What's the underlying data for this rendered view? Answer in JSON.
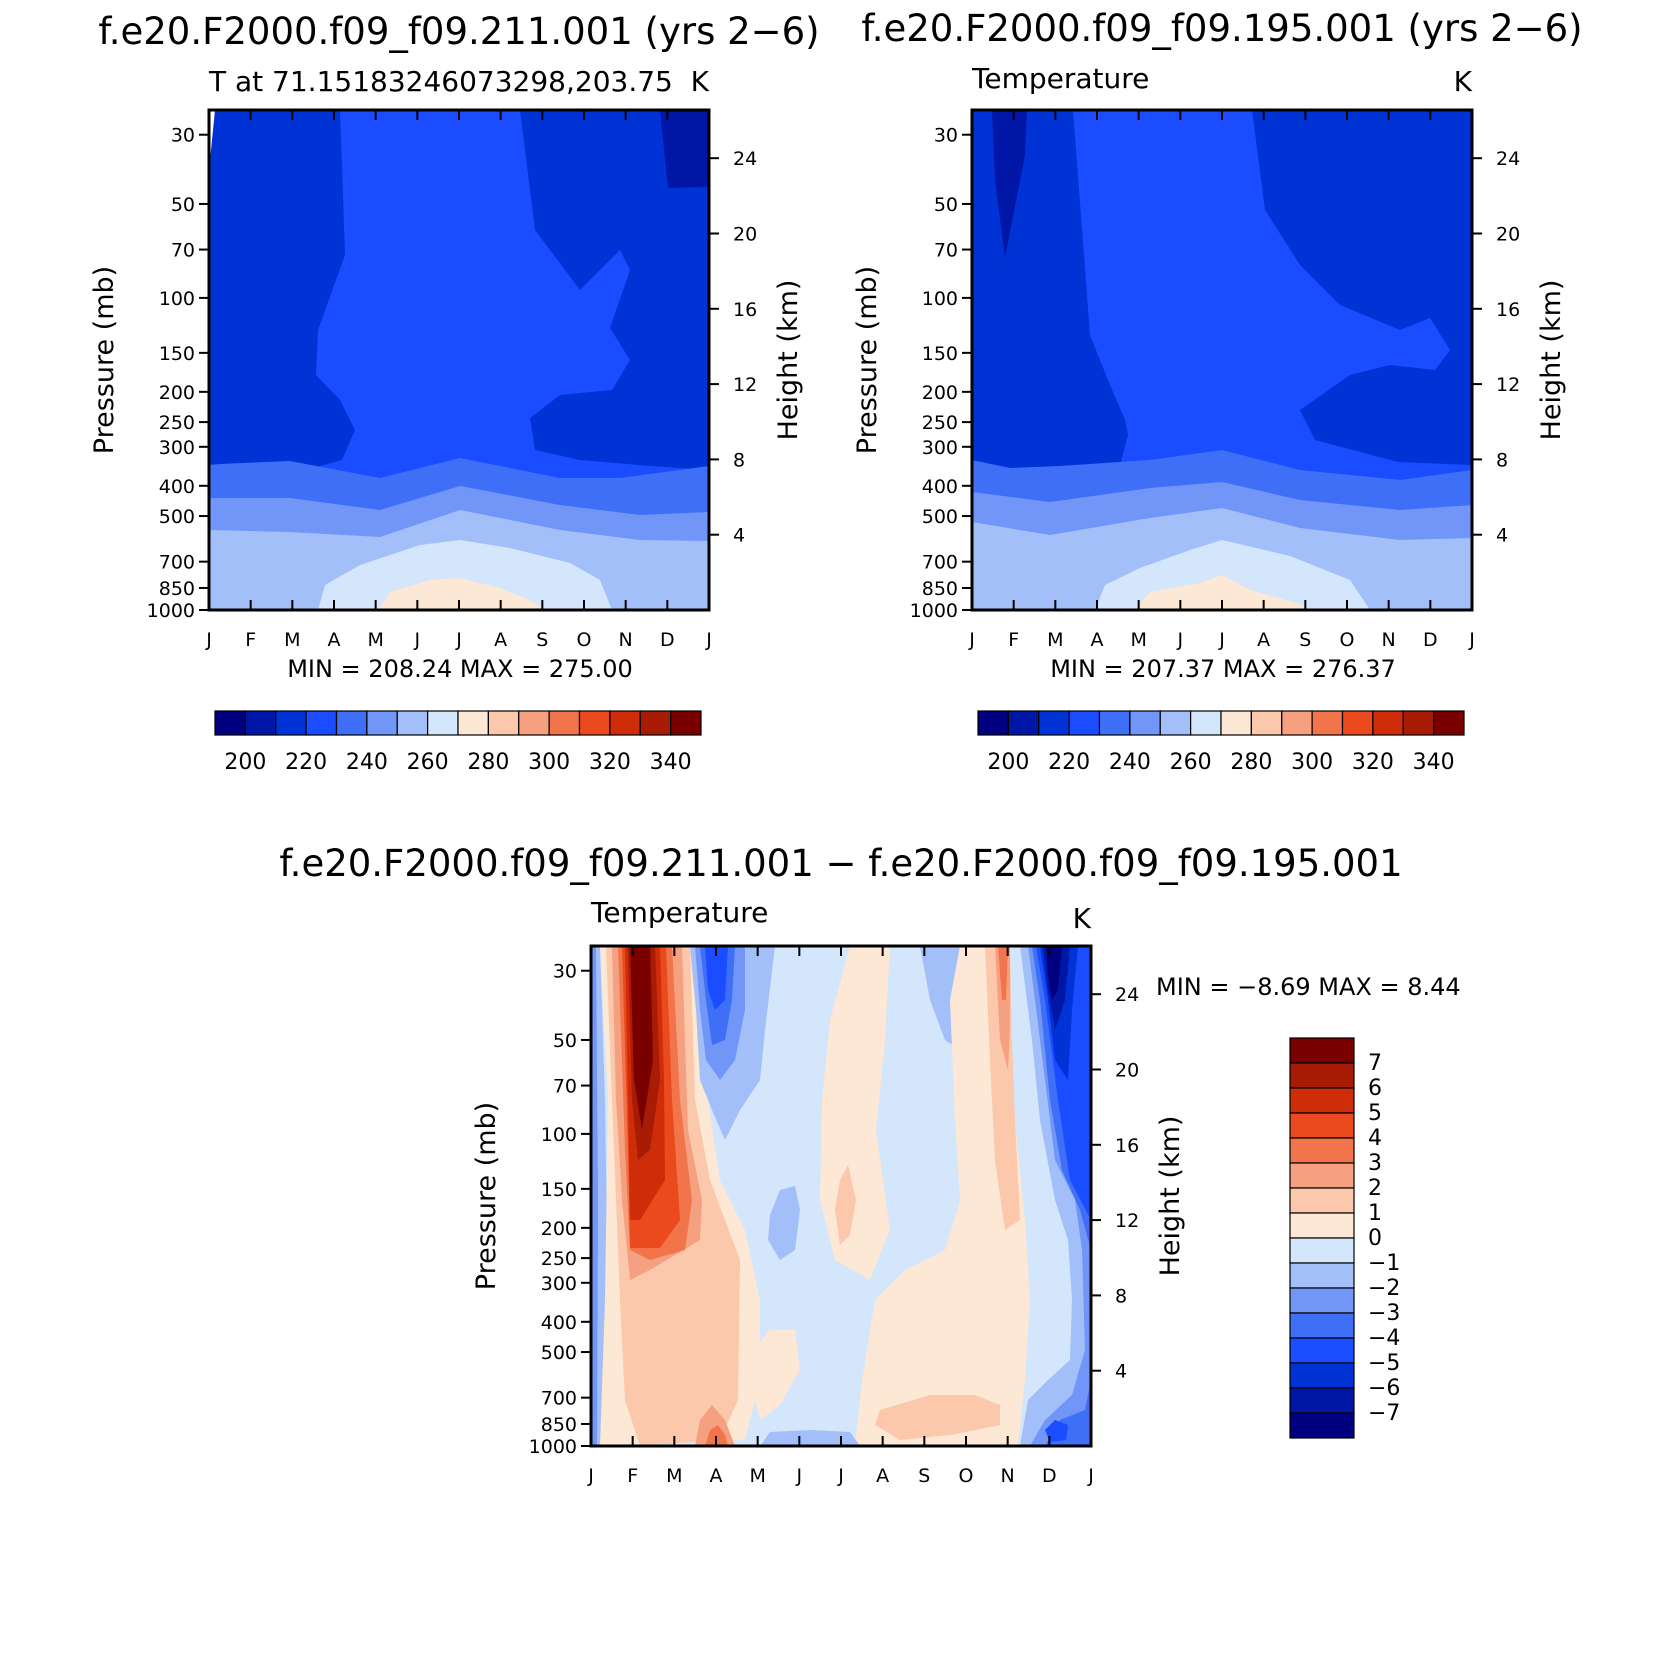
{
  "chart_data": [
    {
      "type": "heatmap",
      "title": "f.e20.F2000.f09_f09.211.001 (yrs 2−6)",
      "left_label": "T at 71.15183246073298,203.75",
      "right_label": "K",
      "xlabel": "",
      "ylabel": "Pressure (mb)",
      "y2label": "Height (km)",
      "months": [
        "J",
        "F",
        "M",
        "A",
        "M",
        "J",
        "J",
        "A",
        "S",
        "O",
        "N",
        "D",
        "J"
      ],
      "pressure_ticks": [
        30,
        50,
        70,
        100,
        150,
        200,
        250,
        300,
        400,
        500,
        700,
        850,
        1000
      ],
      "height_ticks": [
        24,
        20,
        16,
        12,
        8,
        4
      ],
      "ylim": [
        1000,
        25
      ],
      "stats_text": "MIN = 208.24 MAX = 275.00",
      "min": 208.24,
      "max": 275.0,
      "levels": [
        200,
        210,
        220,
        230,
        240,
        250,
        260,
        270,
        280,
        290,
        300,
        310,
        320,
        330,
        340
      ],
      "colorbar_labels": [
        "200",
        "220",
        "240",
        "260",
        "280",
        "300",
        "320",
        "340"
      ],
      "colors": [
        "#000080",
        "#0016a6",
        "#0033d6",
        "#1a4dff",
        "#3f6ff6",
        "#7196f7",
        "#a3bffa",
        "#d3e6fb",
        "#fde7d5",
        "#fbc8ac",
        "#f5a181",
        "#f1744a",
        "#ea4a1d",
        "#cf2c0a",
        "#a81b05",
        "#7a0000"
      ]
    },
    {
      "type": "heatmap",
      "title": "f.e20.F2000.f09_f09.195.001 (yrs 2−6)",
      "left_label": "Temperature",
      "right_label": "K",
      "xlabel": "",
      "ylabel": "Pressure (mb)",
      "y2label": "Height (km)",
      "months": [
        "J",
        "F",
        "M",
        "A",
        "M",
        "J",
        "J",
        "A",
        "S",
        "O",
        "N",
        "D",
        "J"
      ],
      "pressure_ticks": [
        30,
        50,
        70,
        100,
        150,
        200,
        250,
        300,
        400,
        500,
        700,
        850,
        1000
      ],
      "height_ticks": [
        24,
        20,
        16,
        12,
        8,
        4
      ],
      "ylim": [
        1000,
        25
      ],
      "stats_text": "MIN = 207.37 MAX = 276.37",
      "min": 207.37,
      "max": 276.37,
      "levels": [
        200,
        210,
        220,
        230,
        240,
        250,
        260,
        270,
        280,
        290,
        300,
        310,
        320,
        330,
        340
      ],
      "colorbar_labels": [
        "200",
        "220",
        "240",
        "260",
        "280",
        "300",
        "320",
        "340"
      ],
      "colors": [
        "#000080",
        "#0016a6",
        "#0033d6",
        "#1a4dff",
        "#3f6ff6",
        "#7196f7",
        "#a3bffa",
        "#d3e6fb",
        "#fde7d5",
        "#fbc8ac",
        "#f5a181",
        "#f1744a",
        "#ea4a1d",
        "#cf2c0a",
        "#a81b05",
        "#7a0000"
      ]
    },
    {
      "type": "heatmap",
      "title": "f.e20.F2000.f09_f09.211.001 − f.e20.F2000.f09_f09.195.001",
      "left_label": "Temperature",
      "right_label": "K",
      "xlabel": "",
      "ylabel": "Pressure (mb)",
      "y2label": "Height (km)",
      "months": [
        "J",
        "F",
        "M",
        "A",
        "M",
        "J",
        "J",
        "A",
        "S",
        "O",
        "N",
        "D",
        "J"
      ],
      "pressure_ticks": [
        30,
        50,
        70,
        100,
        150,
        200,
        250,
        300,
        400,
        500,
        700,
        850,
        1000
      ],
      "height_ticks": [
        24,
        20,
        16,
        12,
        8,
        4
      ],
      "ylim": [
        1000,
        25
      ],
      "stats_text": "MIN = −8.69 MAX = 8.44",
      "min": -8.69,
      "max": 8.44,
      "levels": [
        -7,
        -6,
        -5,
        -4,
        -3,
        -2,
        -1,
        0,
        1,
        2,
        3,
        4,
        5,
        6,
        7
      ],
      "colorbar_labels": [
        "7",
        "6",
        "5",
        "4",
        "3",
        "2",
        "1",
        "0",
        "−1",
        "−2",
        "−3",
        "−4",
        "−5",
        "−6",
        "−7"
      ],
      "colors": [
        "#000080",
        "#0016a6",
        "#0033d6",
        "#1a4dff",
        "#3f6ff6",
        "#7196f7",
        "#a3bffa",
        "#d3e6fb",
        "#fde7d5",
        "#fbc8ac",
        "#f5a181",
        "#f1744a",
        "#ea4a1d",
        "#cf2c0a",
        "#a81b05",
        "#7a0000"
      ]
    }
  ]
}
